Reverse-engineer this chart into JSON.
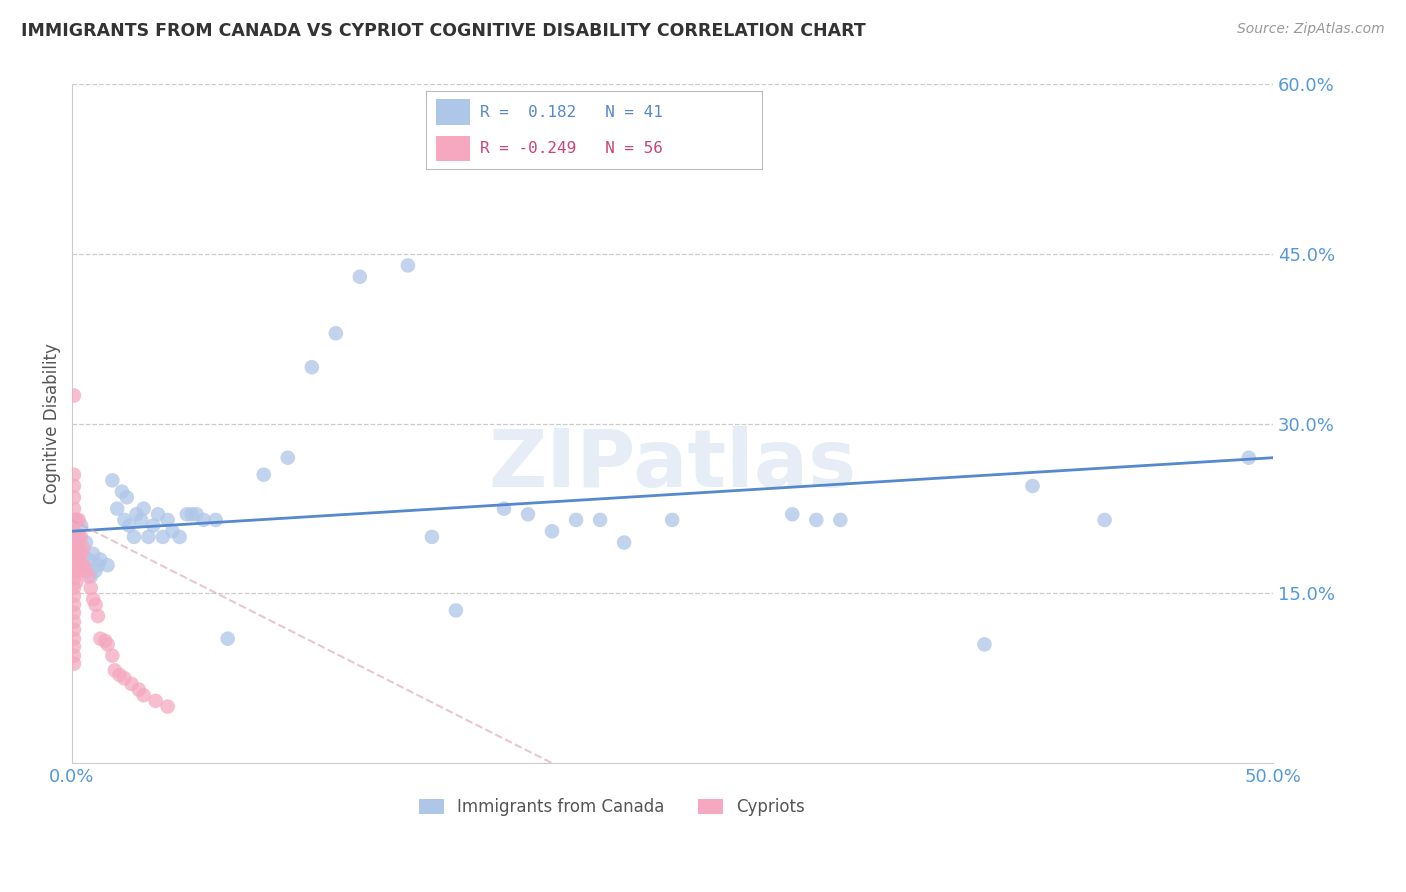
{
  "title": "IMMIGRANTS FROM CANADA VS CYPRIOT COGNITIVE DISABILITY CORRELATION CHART",
  "source": "Source: ZipAtlas.com",
  "ylabel_label": "Cognitive Disability",
  "xlim": [
    0.0,
    0.5
  ],
  "ylim": [
    0.0,
    0.6
  ],
  "xticks": [
    0.0,
    0.1,
    0.2,
    0.3,
    0.4,
    0.5
  ],
  "yticks": [
    0.0,
    0.15,
    0.3,
    0.45,
    0.6
  ],
  "xticklabels": [
    "0.0%",
    "",
    "",
    "",
    "",
    "50.0%"
  ],
  "yticklabels": [
    "",
    "15.0%",
    "30.0%",
    "45.0%",
    "60.0%"
  ],
  "watermark": "ZIPatlas",
  "canada_color": "#aec6e8",
  "cyprus_color": "#f5a8c0",
  "canada_line_color": "#5588cc",
  "cyprus_line_color": "#dda0b0",
  "canada_points": [
    [
      0.001,
      0.205
    ],
    [
      0.002,
      0.195
    ],
    [
      0.002,
      0.215
    ],
    [
      0.003,
      0.2
    ],
    [
      0.003,
      0.185
    ],
    [
      0.004,
      0.21
    ],
    [
      0.005,
      0.175
    ],
    [
      0.006,
      0.195
    ],
    [
      0.007,
      0.18
    ],
    [
      0.008,
      0.165
    ],
    [
      0.009,
      0.185
    ],
    [
      0.01,
      0.17
    ],
    [
      0.011,
      0.175
    ],
    [
      0.012,
      0.18
    ],
    [
      0.015,
      0.175
    ],
    [
      0.017,
      0.25
    ],
    [
      0.019,
      0.225
    ],
    [
      0.021,
      0.24
    ],
    [
      0.022,
      0.215
    ],
    [
      0.023,
      0.235
    ],
    [
      0.024,
      0.21
    ],
    [
      0.026,
      0.2
    ],
    [
      0.027,
      0.22
    ],
    [
      0.029,
      0.215
    ],
    [
      0.03,
      0.225
    ],
    [
      0.032,
      0.2
    ],
    [
      0.034,
      0.21
    ],
    [
      0.036,
      0.22
    ],
    [
      0.038,
      0.2
    ],
    [
      0.04,
      0.215
    ],
    [
      0.042,
      0.205
    ],
    [
      0.045,
      0.2
    ],
    [
      0.048,
      0.22
    ],
    [
      0.05,
      0.22
    ],
    [
      0.052,
      0.22
    ],
    [
      0.055,
      0.215
    ],
    [
      0.06,
      0.215
    ],
    [
      0.065,
      0.11
    ],
    [
      0.08,
      0.255
    ],
    [
      0.09,
      0.27
    ],
    [
      0.1,
      0.35
    ],
    [
      0.11,
      0.38
    ],
    [
      0.12,
      0.43
    ],
    [
      0.14,
      0.44
    ],
    [
      0.15,
      0.2
    ],
    [
      0.16,
      0.135
    ],
    [
      0.18,
      0.225
    ],
    [
      0.19,
      0.22
    ],
    [
      0.2,
      0.205
    ],
    [
      0.21,
      0.215
    ],
    [
      0.22,
      0.215
    ],
    [
      0.23,
      0.195
    ],
    [
      0.25,
      0.215
    ],
    [
      0.3,
      0.22
    ],
    [
      0.31,
      0.215
    ],
    [
      0.32,
      0.215
    ],
    [
      0.38,
      0.105
    ],
    [
      0.4,
      0.245
    ],
    [
      0.43,
      0.215
    ],
    [
      0.49,
      0.27
    ]
  ],
  "cyprus_points": [
    [
      0.001,
      0.325
    ],
    [
      0.001,
      0.255
    ],
    [
      0.001,
      0.245
    ],
    [
      0.001,
      0.235
    ],
    [
      0.001,
      0.225
    ],
    [
      0.001,
      0.215
    ],
    [
      0.001,
      0.205
    ],
    [
      0.001,
      0.195
    ],
    [
      0.001,
      0.185
    ],
    [
      0.001,
      0.178
    ],
    [
      0.001,
      0.17
    ],
    [
      0.001,
      0.163
    ],
    [
      0.001,
      0.155
    ],
    [
      0.001,
      0.148
    ],
    [
      0.001,
      0.14
    ],
    [
      0.001,
      0.133
    ],
    [
      0.001,
      0.125
    ],
    [
      0.001,
      0.118
    ],
    [
      0.001,
      0.11
    ],
    [
      0.001,
      0.103
    ],
    [
      0.001,
      0.095
    ],
    [
      0.001,
      0.088
    ],
    [
      0.002,
      0.215
    ],
    [
      0.002,
      0.2
    ],
    [
      0.002,
      0.19
    ],
    [
      0.002,
      0.18
    ],
    [
      0.002,
      0.17
    ],
    [
      0.002,
      0.16
    ],
    [
      0.003,
      0.215
    ],
    [
      0.003,
      0.2
    ],
    [
      0.003,
      0.19
    ],
    [
      0.003,
      0.18
    ],
    [
      0.003,
      0.17
    ],
    [
      0.004,
      0.2
    ],
    [
      0.004,
      0.185
    ],
    [
      0.005,
      0.19
    ],
    [
      0.005,
      0.175
    ],
    [
      0.006,
      0.17
    ],
    [
      0.007,
      0.165
    ],
    [
      0.008,
      0.155
    ],
    [
      0.009,
      0.145
    ],
    [
      0.01,
      0.14
    ],
    [
      0.011,
      0.13
    ],
    [
      0.012,
      0.11
    ],
    [
      0.014,
      0.108
    ],
    [
      0.015,
      0.105
    ],
    [
      0.017,
      0.095
    ],
    [
      0.018,
      0.082
    ],
    [
      0.02,
      0.078
    ],
    [
      0.022,
      0.075
    ],
    [
      0.025,
      0.07
    ],
    [
      0.028,
      0.065
    ],
    [
      0.03,
      0.06
    ],
    [
      0.035,
      0.055
    ],
    [
      0.04,
      0.05
    ]
  ]
}
